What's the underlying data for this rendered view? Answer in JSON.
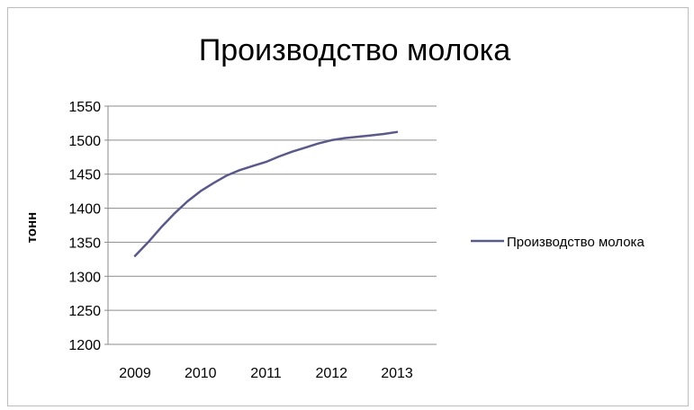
{
  "chart_data": {
    "type": "line",
    "title": "Производство молока",
    "xlabel": "",
    "ylabel": "тонн",
    "categories": [
      "2009",
      "2010",
      "2011",
      "2012",
      "2013"
    ],
    "series": [
      {
        "name": "Производство молока",
        "x": [
          2009,
          2009.2,
          2009.4,
          2009.6,
          2009.8,
          2010,
          2010.2,
          2010.4,
          2010.6,
          2010.8,
          2011,
          2011.2,
          2011.4,
          2011.6,
          2011.8,
          2012,
          2012.2,
          2012.4,
          2012.6,
          2012.8,
          2013
        ],
        "values": [
          1330,
          1350,
          1372,
          1392,
          1410,
          1425,
          1437,
          1448,
          1456,
          1462,
          1468,
          1476,
          1483,
          1489,
          1495,
          1500,
          1503,
          1505,
          1507,
          1509,
          1512
        ]
      }
    ],
    "ylim": [
      1200,
      1550
    ],
    "yticks": [
      1200,
      1250,
      1300,
      1350,
      1400,
      1450,
      1500,
      1550
    ],
    "grid": true,
    "legend": "right",
    "colors": {
      "line": "#5a5a8a",
      "grid": "#8c8c8c",
      "axis": "#8c8c8c"
    }
  }
}
